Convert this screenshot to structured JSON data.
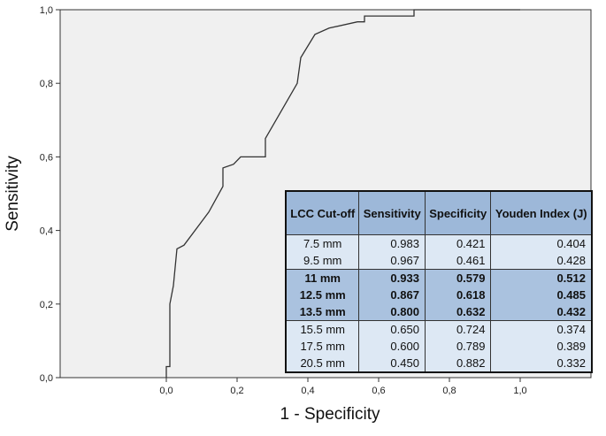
{
  "chart_data": {
    "type": "line",
    "xlabel": "1 - Specificity",
    "ylabel": "Sensitivity",
    "xlim": [
      -0.3,
      1.2
    ],
    "ylim": [
      0,
      1
    ],
    "x_ticks": [
      "0,0",
      "0,2",
      "0,4",
      "0,6",
      "0,8",
      "1,0"
    ],
    "x_tick_values": [
      0,
      0.2,
      0.4,
      0.6,
      0.8,
      1.0
    ],
    "y_ticks": [
      "0,0",
      "0,2",
      "0,4",
      "0,6",
      "0,8",
      "1,0"
    ],
    "y_tick_values": [
      0,
      0.2,
      0.4,
      0.6,
      0.8,
      1.0
    ],
    "grid": false,
    "background_color": "#f0f0f0",
    "line_color": "#333333",
    "series": [
      {
        "x": [
          0.0,
          0.0,
          0.01,
          0.01,
          0.02,
          0.03,
          0.03,
          0.05,
          0.12,
          0.16,
          0.16,
          0.19,
          0.21,
          0.28,
          0.28,
          0.31,
          0.37,
          0.38,
          0.42,
          0.46,
          0.54,
          0.56,
          0.56,
          0.58,
          0.7,
          0.7,
          1.0
        ],
        "y": [
          0.0,
          0.03,
          0.03,
          0.2,
          0.25,
          0.35,
          0.35,
          0.36,
          0.45,
          0.52,
          0.57,
          0.58,
          0.6,
          0.6,
          0.65,
          0.7,
          0.8,
          0.87,
          0.933,
          0.95,
          0.967,
          0.967,
          0.983,
          0.983,
          0.983,
          1.0,
          1.0
        ]
      }
    ]
  },
  "table": {
    "headers": [
      "LCC Cut-off",
      "Sensitivity",
      "Specificity",
      "Youden Index (J)"
    ],
    "rows": [
      {
        "cutoff": "7.5 mm",
        "sensitivity": "0.983",
        "specificity": "0.421",
        "youden": "0.404",
        "highlight": false
      },
      {
        "cutoff": "9.5 mm",
        "sensitivity": "0.967",
        "specificity": "0.461",
        "youden": "0.428",
        "highlight": false
      },
      {
        "cutoff": "11 mm",
        "sensitivity": "0.933",
        "specificity": "0.579",
        "youden": "0.512",
        "highlight": true
      },
      {
        "cutoff": "12.5 mm",
        "sensitivity": "0.867",
        "specificity": "0.618",
        "youden": "0.485",
        "highlight": true
      },
      {
        "cutoff": "13.5 mm",
        "sensitivity": "0.800",
        "specificity": "0.632",
        "youden": "0.432",
        "highlight": true
      },
      {
        "cutoff": "15.5 mm",
        "sensitivity": "0.650",
        "specificity": "0.724",
        "youden": "0.374",
        "highlight": false
      },
      {
        "cutoff": "17.5 mm",
        "sensitivity": "0.600",
        "specificity": "0.789",
        "youden": "0.389",
        "highlight": false
      },
      {
        "cutoff": "20.5 mm",
        "sensitivity": "0.450",
        "specificity": "0.882",
        "youden": "0.332",
        "highlight": false
      }
    ],
    "header_color": "#9db8d9",
    "row_color": "#dde8f4",
    "highlight_color": "#aac2df"
  }
}
